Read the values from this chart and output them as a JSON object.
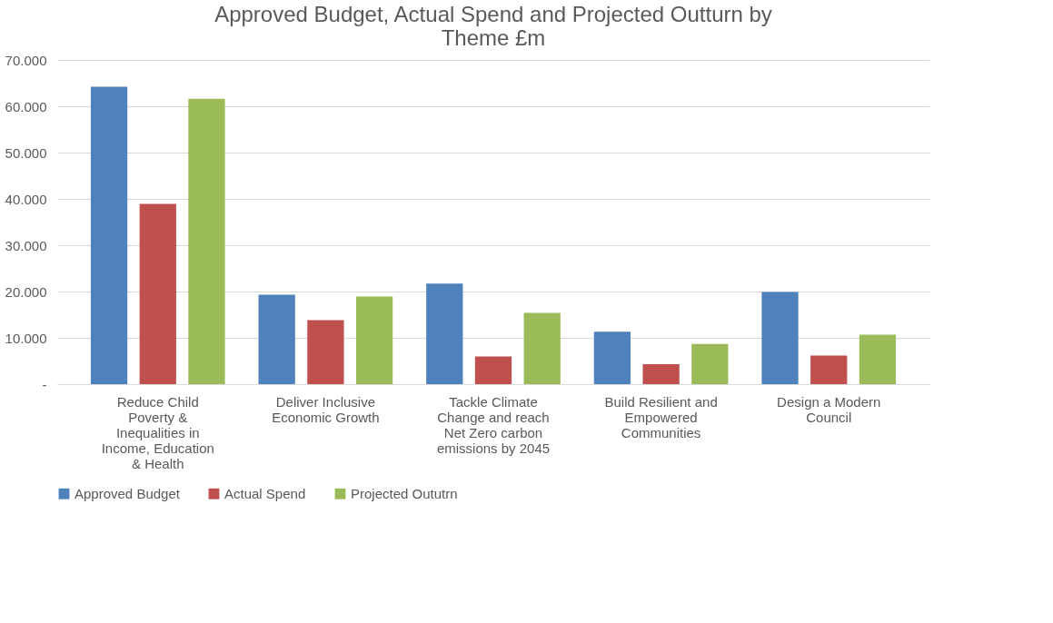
{
  "chart_data": {
    "type": "bar",
    "title": [
      "Approved Budget, Actual Spend and Projected Outturn by",
      "Theme £m"
    ],
    "categories": [
      [
        "Reduce Child",
        "Poverty &",
        "Inequalities in",
        "Income, Education",
        "& Health"
      ],
      [
        "Deliver Inclusive",
        "Economic Growth"
      ],
      [
        "Tackle Climate",
        "Change and reach",
        "Net Zero carbon",
        "emissions by 2045"
      ],
      [
        "Build Resilient and",
        "Empowered",
        "Communities"
      ],
      [
        "Design a Modern",
        "Council"
      ]
    ],
    "series": [
      {
        "name": "Approved Budget",
        "color": "#4f81bd",
        "values": [
          64.2,
          19.3,
          21.7,
          11.3,
          19.9
        ]
      },
      {
        "name": "Actual Spend",
        "color": "#c0504d",
        "values": [
          38.9,
          13.8,
          6.0,
          4.3,
          6.2
        ]
      },
      {
        "name": "Projected Oututrn",
        "color": "#9bbb59",
        "values": [
          61.6,
          18.9,
          15.4,
          8.7,
          10.7
        ]
      }
    ],
    "ylim": [
      0,
      70
    ],
    "yticks": [
      {
        "value": 0,
        "label": "-"
      },
      {
        "value": 10,
        "label": "10.000"
      },
      {
        "value": 20,
        "label": "20.000"
      },
      {
        "value": 30,
        "label": "30.000"
      },
      {
        "value": 40,
        "label": "40.000"
      },
      {
        "value": 50,
        "label": "50.000"
      },
      {
        "value": 60,
        "label": "60.000"
      },
      {
        "value": 70,
        "label": "70.000"
      }
    ],
    "grid": "y",
    "legend": "bottom"
  }
}
